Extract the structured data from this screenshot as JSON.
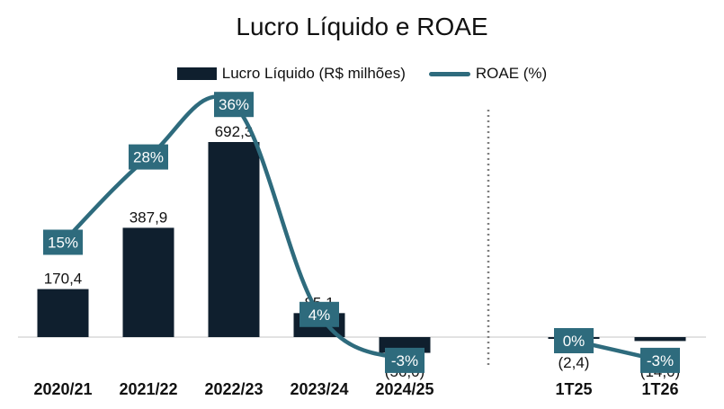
{
  "chart_data": {
    "type": "bar",
    "title": "Lucro Líquido e ROAE",
    "categories": [
      "2020/21",
      "2021/22",
      "2022/23",
      "2023/24",
      "2024/25",
      "1T25",
      "1T26"
    ],
    "series": [
      {
        "name": "Lucro Líquido (R$ milhões)",
        "type": "bar",
        "values": [
          170.4,
          387.9,
          692.3,
          85.1,
          -56.0,
          -2.4,
          -14.0
        ],
        "labels": [
          "170,4",
          "387,9",
          "692,3",
          "85,1",
          "(56,0)",
          "(2,4)",
          "(14,0)"
        ]
      },
      {
        "name": "ROAE (%)",
        "type": "line",
        "values": [
          15,
          28,
          36,
          4,
          -3,
          0,
          -3
        ],
        "labels": [
          "15%",
          "28%",
          "36%",
          "4%",
          "-3%",
          "0%",
          "-3%"
        ]
      }
    ],
    "legend_position": "top",
    "gridlines": false,
    "colors": {
      "bar": "#0f1f2e",
      "line": "#2e6b7d",
      "label_box": "#2e6b7d",
      "divider": "#7f7f7f"
    }
  }
}
